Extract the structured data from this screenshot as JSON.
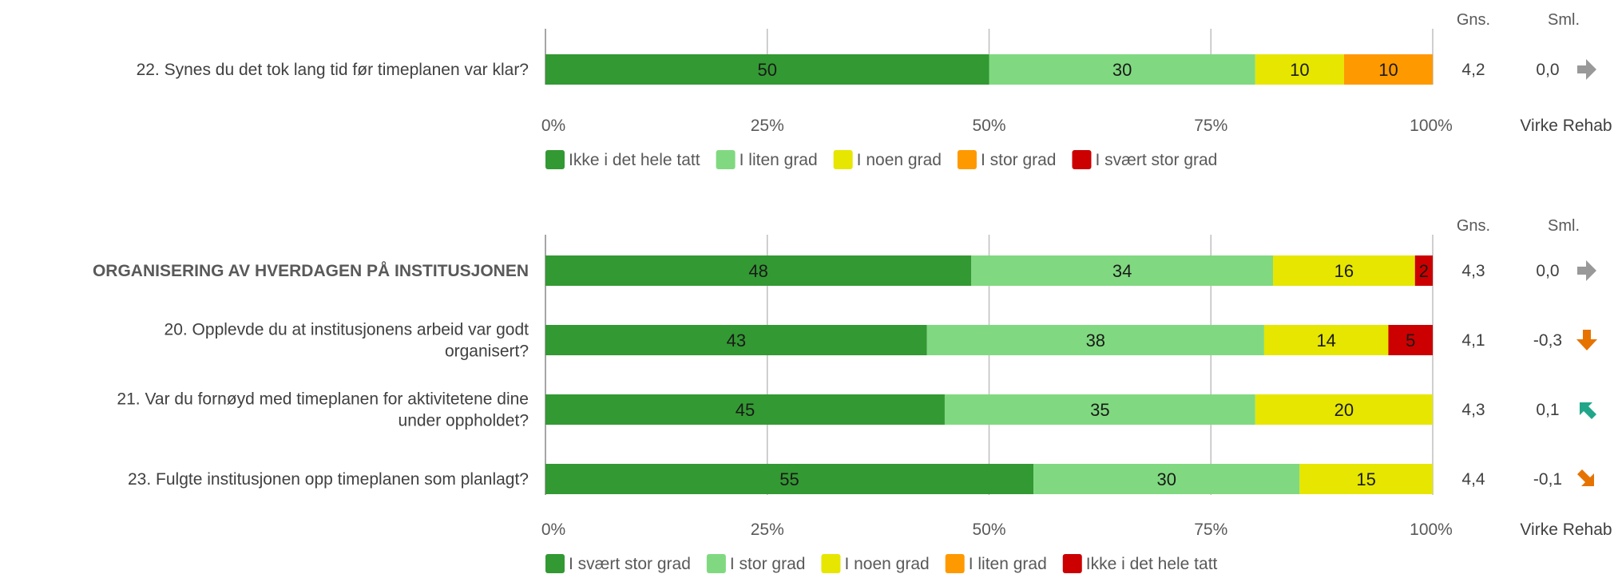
{
  "colors": {
    "grid": "#bfbfbf",
    "axis": "#a6a6a6",
    "cat": [
      "#339933",
      "#80d980",
      "#e6e600",
      "#ff9900",
      "#cc0000"
    ],
    "arrow_neutral": "#999999",
    "arrow_down": "#e67300",
    "arrow_up": "#22a68a"
  },
  "chart_data": [
    {
      "type": "bar",
      "orientation": "horizontal",
      "stacked": true,
      "xlim": [
        0,
        100
      ],
      "xticks": [
        "0%",
        "25%",
        "50%",
        "75%",
        "100%"
      ],
      "columns": {
        "avg": "Gns.",
        "cmp": "Sml."
      },
      "footer": "Virke Rehab",
      "legend_position": "bottom",
      "series": [
        {
          "name": "Ikke i det hele tatt",
          "values": [
            50
          ]
        },
        {
          "name": "I liten grad",
          "values": [
            30
          ]
        },
        {
          "name": "I noen grad",
          "values": [
            10
          ]
        },
        {
          "name": "I stor grad",
          "values": [
            10
          ]
        },
        {
          "name": "I svært stor grad",
          "values": [
            0
          ]
        }
      ],
      "rows": [
        {
          "label": "22. Synes du det tok lang tid før timeplanen var klar?",
          "bold": false,
          "values": [
            50,
            30,
            10,
            10,
            0
          ],
          "avg": "4,2",
          "cmp": "0,0",
          "arrow": "right"
        }
      ]
    },
    {
      "type": "bar",
      "orientation": "horizontal",
      "stacked": true,
      "xlim": [
        0,
        100
      ],
      "xticks": [
        "0%",
        "25%",
        "50%",
        "75%",
        "100%"
      ],
      "columns": {
        "avg": "Gns.",
        "cmp": "Sml."
      },
      "footer": "Virke Rehab",
      "legend_position": "bottom",
      "series": [
        {
          "name": "I svært stor grad",
          "values": [
            48,
            43,
            45,
            55
          ]
        },
        {
          "name": "I stor grad",
          "values": [
            34,
            38,
            35,
            30
          ]
        },
        {
          "name": "I noen grad",
          "values": [
            16,
            14,
            20,
            15
          ]
        },
        {
          "name": "I liten grad",
          "values": [
            0,
            0,
            0,
            0
          ]
        },
        {
          "name": "Ikke i det hele tatt",
          "values": [
            2,
            5,
            0,
            0
          ]
        }
      ],
      "rows": [
        {
          "label": "ORGANISERING AV HVERDAGEN PÅ INSTITUSJONEN",
          "bold": true,
          "values": [
            48,
            34,
            16,
            0,
            2
          ],
          "avg": "4,3",
          "cmp": "0,0",
          "arrow": "right"
        },
        {
          "label": "20. Opplevde du at institusjonens arbeid var godt organisert?",
          "bold": false,
          "values": [
            43,
            38,
            14,
            0,
            5
          ],
          "avg": "4,1",
          "cmp": "-0,3",
          "arrow": "down"
        },
        {
          "label": "21. Var du fornøyd med timeplanen for aktivitetene dine under oppholdet?",
          "bold": false,
          "values": [
            45,
            35,
            20,
            0,
            0
          ],
          "avg": "4,3",
          "cmp": "0,1",
          "arrow": "up-left"
        },
        {
          "label": "23. Fulgte institusjonen opp timeplanen som planlagt?",
          "bold": false,
          "values": [
            55,
            30,
            15,
            0,
            0
          ],
          "avg": "4,4",
          "cmp": "-0,1",
          "arrow": "down-right"
        }
      ]
    }
  ]
}
